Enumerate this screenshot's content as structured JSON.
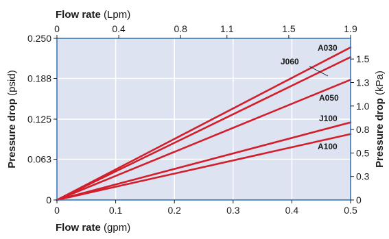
{
  "chart_data": {
    "type": "line",
    "title": "",
    "colors": {
      "plot_background": "#dde3f1",
      "grid": "#ffffff",
      "series": "#d21f2b",
      "frame": "#2f6fb5"
    },
    "axes": {
      "bottom": {
        "label_bold": "Flow rate",
        "label_unit": "(gpm)",
        "range": [
          0,
          0.5
        ],
        "ticks": [
          {
            "value": 0,
            "label": "0"
          },
          {
            "value": 0.1,
            "label": "0.1"
          },
          {
            "value": 0.2,
            "label": "0.2"
          },
          {
            "value": 0.3,
            "label": "0.3"
          },
          {
            "value": 0.4,
            "label": "0.4"
          },
          {
            "value": 0.5,
            "label": "0.5"
          }
        ]
      },
      "top": {
        "label_bold": "Flow rate",
        "label_unit": "(Lpm)",
        "range": [
          0,
          1.9
        ],
        "ticks": [
          {
            "value": 0,
            "label": "0"
          },
          {
            "value": 0.4,
            "label": "0.4"
          },
          {
            "value": 0.8,
            "label": "0.8"
          },
          {
            "value": 1.1,
            "label": "1.1"
          },
          {
            "value": 1.5,
            "label": "1.5"
          },
          {
            "value": 1.9,
            "label": "1.9"
          }
        ]
      },
      "left": {
        "label_bold": "Pressure drop",
        "label_unit": "(psid)",
        "range": [
          0,
          0.25
        ],
        "ticks": [
          {
            "value": 0,
            "label": "0"
          },
          {
            "value": 0.063,
            "label": "0.063"
          },
          {
            "value": 0.125,
            "label": "0.125"
          },
          {
            "value": 0.188,
            "label": "0.188"
          },
          {
            "value": 0.25,
            "label": "0.250"
          }
        ]
      },
      "right": {
        "label_bold": "Pressure drop",
        "label_unit": "(kPa)",
        "range": [
          0,
          1.72
        ],
        "ticks": [
          {
            "value": 0,
            "label": "0"
          },
          {
            "value": 0.25,
            "label": "0.3"
          },
          {
            "value": 0.5,
            "label": "0.5"
          },
          {
            "value": 0.75,
            "label": "0.8"
          },
          {
            "value": 1.0,
            "label": "1.0"
          },
          {
            "value": 1.25,
            "label": "1.3"
          },
          {
            "value": 1.5,
            "label": "1.5"
          }
        ]
      }
    },
    "grid": true,
    "x": [
      0,
      0.5
    ],
    "series": [
      {
        "name": "A030",
        "values": [
          0,
          0.236
        ]
      },
      {
        "name": "J060",
        "values": [
          0,
          0.221
        ]
      },
      {
        "name": "A050",
        "values": [
          0,
          0.186
        ]
      },
      {
        "name": "J100",
        "values": [
          0,
          0.12
        ]
      },
      {
        "name": "A100",
        "values": [
          0,
          0.102
        ]
      }
    ]
  }
}
